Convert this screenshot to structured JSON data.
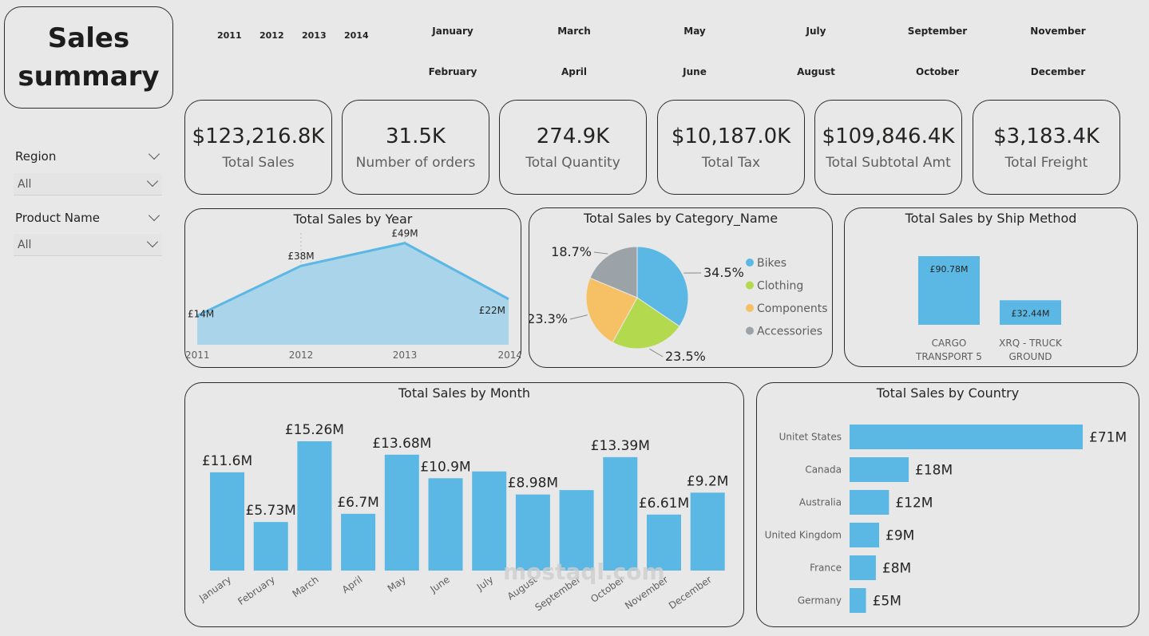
{
  "title": {
    "line1": "Sales",
    "line2": "summary"
  },
  "year_slicer": [
    "2011",
    "2012",
    "2013",
    "2014"
  ],
  "month_slicer": [
    "January",
    "February",
    "March",
    "April",
    "May",
    "June",
    "July",
    "August",
    "September",
    "October",
    "November",
    "December"
  ],
  "filters": [
    {
      "label": "Region",
      "value": "All"
    },
    {
      "label": "Product Name",
      "value": "All"
    }
  ],
  "kpis": [
    {
      "value": "$123,216.8K",
      "label": "Total Sales"
    },
    {
      "value": "31.5K",
      "label": "Number of orders"
    },
    {
      "value": "274.9K",
      "label": "Total Quantity"
    },
    {
      "value": "$10,187.0K",
      "label": "Total Tax"
    },
    {
      "value": "$109,846.4K",
      "label": "Total Subtotal Amt"
    },
    {
      "value": "$3,183.4K",
      "label": "Total Freight"
    }
  ],
  "watermark": "mostaql.com",
  "colors": {
    "bar": "#5bb8e4",
    "area": "#a9d4ea",
    "line": "#5bb8e4",
    "pie": [
      "#5bb8e4",
      "#b3d94f",
      "#f6c164",
      "#9ba3a9"
    ]
  },
  "chart_data": [
    {
      "type": "area",
      "title": "Total Sales by Year",
      "categories": [
        "2011",
        "2012",
        "2013",
        "2014"
      ],
      "values": [
        14,
        38,
        49,
        22
      ],
      "data_labels": [
        "£14M",
        "£38M",
        "£49M",
        "£22M"
      ]
    },
    {
      "type": "pie",
      "title": "Total Sales by Category_Name",
      "categories": [
        "Bikes",
        "Clothing",
        "Components",
        "Accessories"
      ],
      "values": [
        34.5,
        23.5,
        23.3,
        18.7
      ],
      "data_labels": [
        "34.5%",
        "23.5%",
        "23.3%",
        "18.7%"
      ],
      "legend": "right"
    },
    {
      "type": "bar",
      "title": "Total Sales by Ship Method",
      "categories": [
        "CARGO TRANSPORT 5",
        "XRQ - TRUCK GROUND"
      ],
      "category_lines": [
        [
          "CARGO",
          "TRANSPORT 5"
        ],
        [
          "XRQ - TRUCK",
          "GROUND"
        ]
      ],
      "values": [
        90.78,
        32.44
      ],
      "data_labels": [
        "£90.78M",
        "£32.44M"
      ]
    },
    {
      "type": "bar",
      "title": "Total Sales by Month",
      "categories": [
        "January",
        "February",
        "March",
        "April",
        "May",
        "June",
        "July",
        "August",
        "September",
        "October",
        "November",
        "December"
      ],
      "values": [
        11.6,
        5.73,
        15.26,
        6.7,
        13.68,
        10.9,
        11.7,
        8.98,
        9.5,
        13.39,
        6.61,
        9.2
      ],
      "data_labels": [
        "£11.6M",
        "£5.73M",
        "£15.26M",
        "£6.7M",
        "£13.68M",
        "£10.9M",
        "",
        "£8.98M",
        "",
        "£13.39M",
        "£6.61M",
        "£9.2M"
      ]
    },
    {
      "type": "bar",
      "orientation": "horizontal",
      "title": "Total Sales by Country",
      "categories": [
        "Unitet States",
        "Canada",
        "Australia",
        "United Kingdom",
        "France",
        "Germany"
      ],
      "values": [
        71,
        18,
        12,
        9,
        8,
        5
      ],
      "data_labels": [
        "£71M",
        "£18M",
        "£12M",
        "£9M",
        "£8M",
        "£5M"
      ]
    }
  ]
}
